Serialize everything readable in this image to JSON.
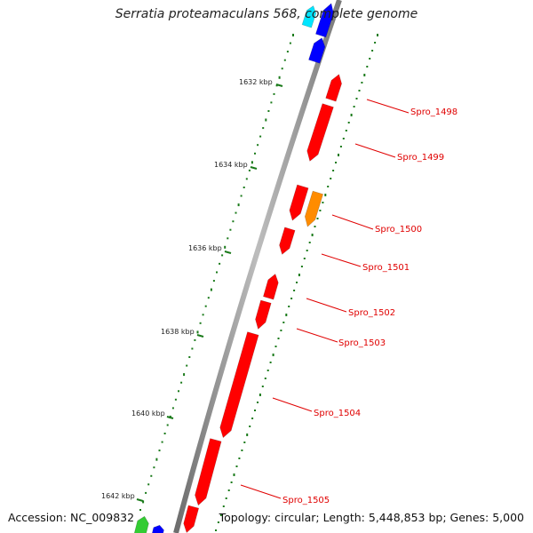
{
  "title": "Serratia proteamaculans 568, complete genome",
  "footer": {
    "accession": "Accession: NC_009832",
    "summary": "Topology: circular; Length: 5,448,853 bp; Genes: 5,000"
  },
  "ticks": [
    "1632 kbp",
    "1634 kbp",
    "1636 kbp",
    "1638 kbp",
    "1640 kbp",
    "1642 kbp"
  ],
  "gene_labels": [
    "Spro_1498",
    "Spro_1499",
    "Spro_1500",
    "Spro_1501",
    "Spro_1502",
    "Spro_1503",
    "Spro_1504",
    "Spro_1505"
  ],
  "colors": {
    "cds": "#ff0000",
    "highlight": "#ff8c00",
    "blue": "#0000ff",
    "cyan": "#00e5ff",
    "green": "#33cc33",
    "gc_dots": "#1a7a1a",
    "backbone": "#888888",
    "label": "#e00000"
  }
}
